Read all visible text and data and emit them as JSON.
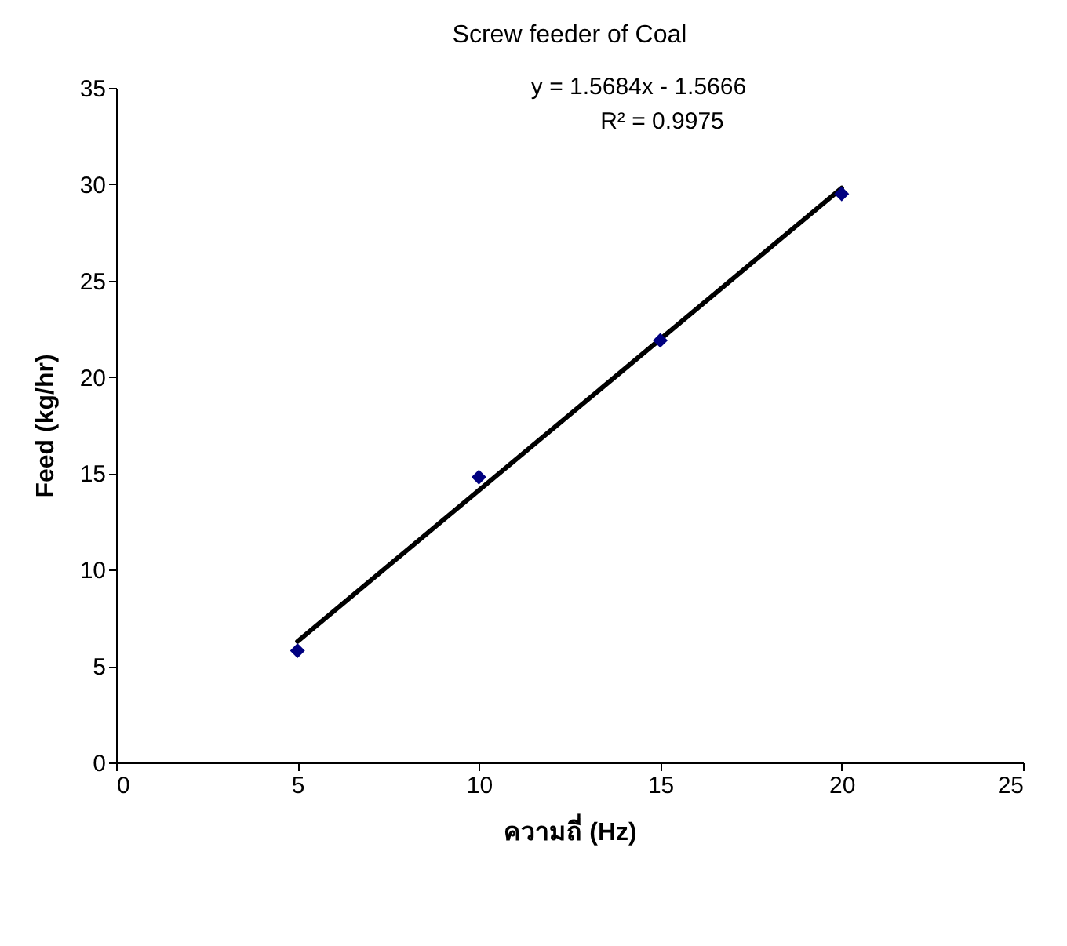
{
  "chart_data": {
    "type": "scatter",
    "title": "Screw feeder of Coal",
    "xlabel": "ความถี่ (Hz)",
    "ylabel": "Feed (kg/hr)",
    "annotations": [
      "y = 1.5684x - 1.5666",
      "R² = 0.9975"
    ],
    "x": [
      5,
      10,
      15,
      20
    ],
    "series": [
      {
        "type": "scatter",
        "color": "#000080",
        "marker": "diamond",
        "values": [
          5.8,
          14.8,
          21.9,
          29.5
        ]
      },
      {
        "type": "line",
        "color": "#000000",
        "x": [
          5,
          20
        ],
        "values": [
          6.28,
          29.8
        ]
      }
    ],
    "xlim": [
      0,
      25
    ],
    "xticks": [
      0,
      5,
      10,
      15,
      20,
      25
    ],
    "ylim": [
      0,
      35
    ],
    "yticks": [
      0,
      5,
      10,
      15,
      20,
      25,
      30,
      35
    ],
    "grid": false
  }
}
